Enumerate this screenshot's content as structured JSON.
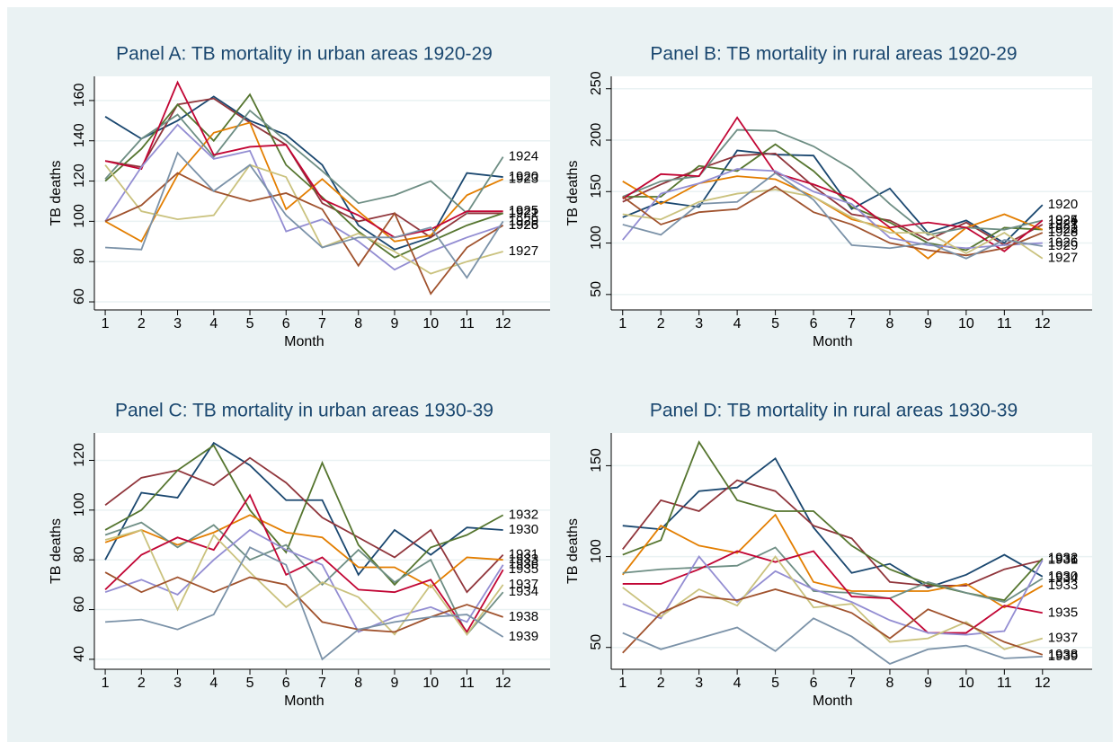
{
  "chart_data": [
    {
      "type": "line",
      "title": "Panel A: TB mortality in urban areas 1920-29",
      "x_label": "Month",
      "y_label": "TB deaths",
      "x": [
        1,
        2,
        3,
        4,
        5,
        6,
        7,
        8,
        9,
        10,
        11,
        12
      ],
      "xticks": [
        1,
        2,
        3,
        4,
        5,
        6,
        7,
        8,
        9,
        10,
        11,
        12
      ],
      "xlim": [
        0.7,
        13.3
      ],
      "ylim": [
        56,
        172
      ],
      "yticks": [
        60,
        80,
        100,
        120,
        140,
        160
      ],
      "grid": true,
      "series": [
        {
          "name": "1920",
          "color": "#1a476f",
          "values": [
            152,
            141,
            150,
            162,
            150,
            143,
            128,
            98,
            86,
            92,
            124,
            122
          ]
        },
        {
          "name": "1921",
          "color": "#90353b",
          "values": [
            130,
            127,
            158,
            161,
            149,
            138,
            109,
            100,
            104,
            92,
            104,
            104
          ]
        },
        {
          "name": "1922",
          "color": "#55752f",
          "values": [
            120,
            136,
            158,
            140,
            163,
            128,
            112,
            95,
            82,
            90,
            98,
            104
          ]
        },
        {
          "name": "1923",
          "color": "#e37e00",
          "values": [
            100,
            90,
            123,
            144,
            149,
            106,
            121,
            105,
            90,
            93,
            113,
            121
          ]
        },
        {
          "name": "1924",
          "color": "#6e8e84",
          "values": [
            121,
            141,
            153,
            132,
            155,
            140,
            125,
            109,
            113,
            120,
            104,
            132
          ]
        },
        {
          "name": "1925",
          "color": "#c10534",
          "values": [
            130,
            126,
            169,
            133,
            137,
            138,
            111,
            103,
            92,
            96,
            105,
            105
          ]
        },
        {
          "name": "1926",
          "color": "#938dd2",
          "values": [
            100,
            127,
            148,
            131,
            135,
            95,
            101,
            90,
            76,
            85,
            92,
            98
          ]
        },
        {
          "name": "1927",
          "color": "#cac27e",
          "values": [
            128,
            105,
            101,
            103,
            128,
            122,
            87,
            94,
            85,
            74,
            80,
            85
          ]
        },
        {
          "name": "1928",
          "color": "#a0522d",
          "values": [
            100,
            108,
            124,
            115,
            110,
            114,
            106,
            78,
            104,
            64,
            87,
            98
          ]
        },
        {
          "name": "1929",
          "color": "#7b92a8",
          "values": [
            87,
            86,
            134,
            115,
            128,
            103,
            87,
            92,
            92,
            97,
            72,
            100
          ]
        }
      ]
    },
    {
      "type": "line",
      "title": "Panel B: TB mortality in rural areas 1920-29",
      "x_label": "Month",
      "y_label": "TB deaths",
      "x": [
        1,
        2,
        3,
        4,
        5,
        6,
        7,
        8,
        9,
        10,
        11,
        12
      ],
      "xticks": [
        1,
        2,
        3,
        4,
        5,
        6,
        7,
        8,
        9,
        10,
        11,
        12
      ],
      "xlim": [
        0.7,
        13.3
      ],
      "ylim": [
        35,
        262
      ],
      "yticks": [
        50,
        100,
        150,
        200,
        250
      ],
      "grid": true,
      "series": [
        {
          "name": "1920",
          "color": "#1a476f",
          "values": [
            125,
            140,
            135,
            190,
            186,
            185,
            133,
            153,
            110,
            122,
            100,
            137
          ]
        },
        {
          "name": "1921",
          "color": "#90353b",
          "values": [
            140,
            157,
            172,
            185,
            187,
            155,
            128,
            122,
            103,
            120,
            98,
            118
          ]
        },
        {
          "name": "1922",
          "color": "#55752f",
          "values": [
            145,
            145,
            175,
            170,
            196,
            170,
            135,
            120,
            100,
            93,
            115,
            113
          ]
        },
        {
          "name": "1923",
          "color": "#e37e00",
          "values": [
            160,
            138,
            158,
            165,
            162,
            145,
            123,
            114,
            85,
            115,
            128,
            113
          ]
        },
        {
          "name": "1924",
          "color": "#6e8e84",
          "values": [
            145,
            160,
            165,
            210,
            209,
            194,
            172,
            138,
            108,
            115,
            113,
            122
          ]
        },
        {
          "name": "1925",
          "color": "#c10534",
          "values": [
            143,
            167,
            165,
            222,
            168,
            157,
            143,
            115,
            120,
            115,
            92,
            122
          ]
        },
        {
          "name": "1926",
          "color": "#938dd2",
          "values": [
            103,
            148,
            158,
            172,
            170,
            150,
            138,
            105,
            98,
            95,
            98,
            100
          ]
        },
        {
          "name": "1927",
          "color": "#cac27e",
          "values": [
            128,
            123,
            140,
            148,
            152,
            145,
            125,
            110,
            110,
            90,
            110,
            85
          ]
        },
        {
          "name": "1928",
          "color": "#a0522d",
          "values": [
            145,
            118,
            130,
            133,
            155,
            130,
            118,
            100,
            93,
            88,
            95,
            110
          ]
        },
        {
          "name": "1929",
          "color": "#7b92a8",
          "values": [
            118,
            108,
            138,
            140,
            168,
            142,
            98,
            95,
            100,
            85,
            103,
            97
          ]
        }
      ]
    },
    {
      "type": "line",
      "title": "Panel C: TB mortality in urban areas 1930-39",
      "x_label": "Month",
      "y_label": "TB deaths",
      "x": [
        1,
        2,
        3,
        4,
        5,
        6,
        7,
        8,
        9,
        10,
        11,
        12
      ],
      "xticks": [
        1,
        2,
        3,
        4,
        5,
        6,
        7,
        8,
        9,
        10,
        11,
        12
      ],
      "xlim": [
        0.7,
        13.3
      ],
      "ylim": [
        36,
        131
      ],
      "yticks": [
        40,
        60,
        80,
        100,
        120
      ],
      "grid": true,
      "series": [
        {
          "name": "1930",
          "color": "#1a476f",
          "values": [
            80,
            107,
            105,
            127,
            118,
            104,
            104,
            74,
            92,
            82,
            93,
            92
          ]
        },
        {
          "name": "1931",
          "color": "#90353b",
          "values": [
            102,
            113,
            116,
            110,
            121,
            111,
            97,
            89,
            81,
            92,
            67,
            82
          ]
        },
        {
          "name": "1932",
          "color": "#55752f",
          "values": [
            92,
            100,
            116,
            126,
            100,
            83,
            119,
            86,
            70,
            85,
            90,
            98
          ]
        },
        {
          "name": "1933",
          "color": "#e37e00",
          "values": [
            87,
            92,
            86,
            91,
            98,
            91,
            89,
            77,
            77,
            69,
            81,
            80
          ]
        },
        {
          "name": "1934",
          "color": "#6e8e84",
          "values": [
            90,
            95,
            85,
            94,
            80,
            86,
            70,
            84,
            71,
            80,
            50,
            67
          ]
        },
        {
          "name": "1935",
          "color": "#c10534",
          "values": [
            68,
            82,
            89,
            84,
            106,
            74,
            81,
            68,
            67,
            72,
            51,
            76
          ]
        },
        {
          "name": "1936",
          "color": "#938dd2",
          "values": [
            67,
            72,
            66,
            80,
            92,
            84,
            78,
            51,
            57,
            61,
            55,
            78
          ]
        },
        {
          "name": "1937",
          "color": "#cac27e",
          "values": [
            88,
            92,
            60,
            90,
            75,
            61,
            71,
            65,
            50,
            70,
            50,
            70
          ]
        },
        {
          "name": "1938",
          "color": "#a0522d",
          "values": [
            75,
            67,
            73,
            67,
            73,
            70,
            55,
            52,
            51,
            57,
            62,
            57
          ]
        },
        {
          "name": "1939",
          "color": "#7b92a8",
          "values": [
            55,
            56,
            52,
            58,
            85,
            78,
            40,
            52,
            55,
            57,
            58,
            49
          ]
        }
      ]
    },
    {
      "type": "line",
      "title": "Panel D: TB mortality in rural areas 1930-39",
      "x_label": "Month",
      "y_label": "TB deaths",
      "x": [
        1,
        2,
        3,
        4,
        5,
        6,
        7,
        8,
        9,
        10,
        11,
        12
      ],
      "xticks": [
        1,
        2,
        3,
        4,
        5,
        6,
        7,
        8,
        9,
        10,
        11,
        12
      ],
      "xlim": [
        0.7,
        13.3
      ],
      "ylim": [
        38,
        168
      ],
      "yticks": [
        50,
        100,
        150
      ],
      "grid": true,
      "series": [
        {
          "name": "1930",
          "color": "#1a476f",
          "values": [
            117,
            115,
            136,
            138,
            154,
            116,
            91,
            96,
            83,
            90,
            101,
            89
          ]
        },
        {
          "name": "1931",
          "color": "#90353b",
          "values": [
            104,
            131,
            125,
            142,
            136,
            117,
            110,
            86,
            84,
            84,
            93,
            98
          ]
        },
        {
          "name": "1932",
          "color": "#55752f",
          "values": [
            101,
            109,
            163,
            131,
            125,
            125,
            106,
            93,
            85,
            80,
            76,
            99
          ]
        },
        {
          "name": "1933",
          "color": "#e37e00",
          "values": [
            90,
            117,
            106,
            102,
            123,
            86,
            81,
            81,
            81,
            85,
            72,
            84
          ]
        },
        {
          "name": "1934",
          "color": "#6e8e84",
          "values": [
            91,
            93,
            94,
            95,
            105,
            81,
            80,
            77,
            86,
            80,
            75,
            88
          ]
        },
        {
          "name": "1935",
          "color": "#c10534",
          "values": [
            85,
            85,
            93,
            103,
            97,
            103,
            78,
            77,
            58,
            58,
            73,
            69
          ]
        },
        {
          "name": "1936",
          "color": "#938dd2",
          "values": [
            74,
            66,
            100,
            75,
            92,
            82,
            75,
            65,
            58,
            57,
            59,
            98
          ]
        },
        {
          "name": "1937",
          "color": "#cac27e",
          "values": [
            83,
            67,
            82,
            73,
            100,
            72,
            74,
            53,
            55,
            64,
            49,
            55
          ]
        },
        {
          "name": "1938",
          "color": "#a0522d",
          "values": [
            47,
            69,
            78,
            76,
            82,
            76,
            69,
            55,
            71,
            63,
            53,
            46
          ]
        },
        {
          "name": "1939",
          "color": "#7b92a8",
          "values": [
            58,
            49,
            55,
            61,
            48,
            66,
            56,
            41,
            49,
            51,
            44,
            45
          ]
        }
      ]
    }
  ]
}
